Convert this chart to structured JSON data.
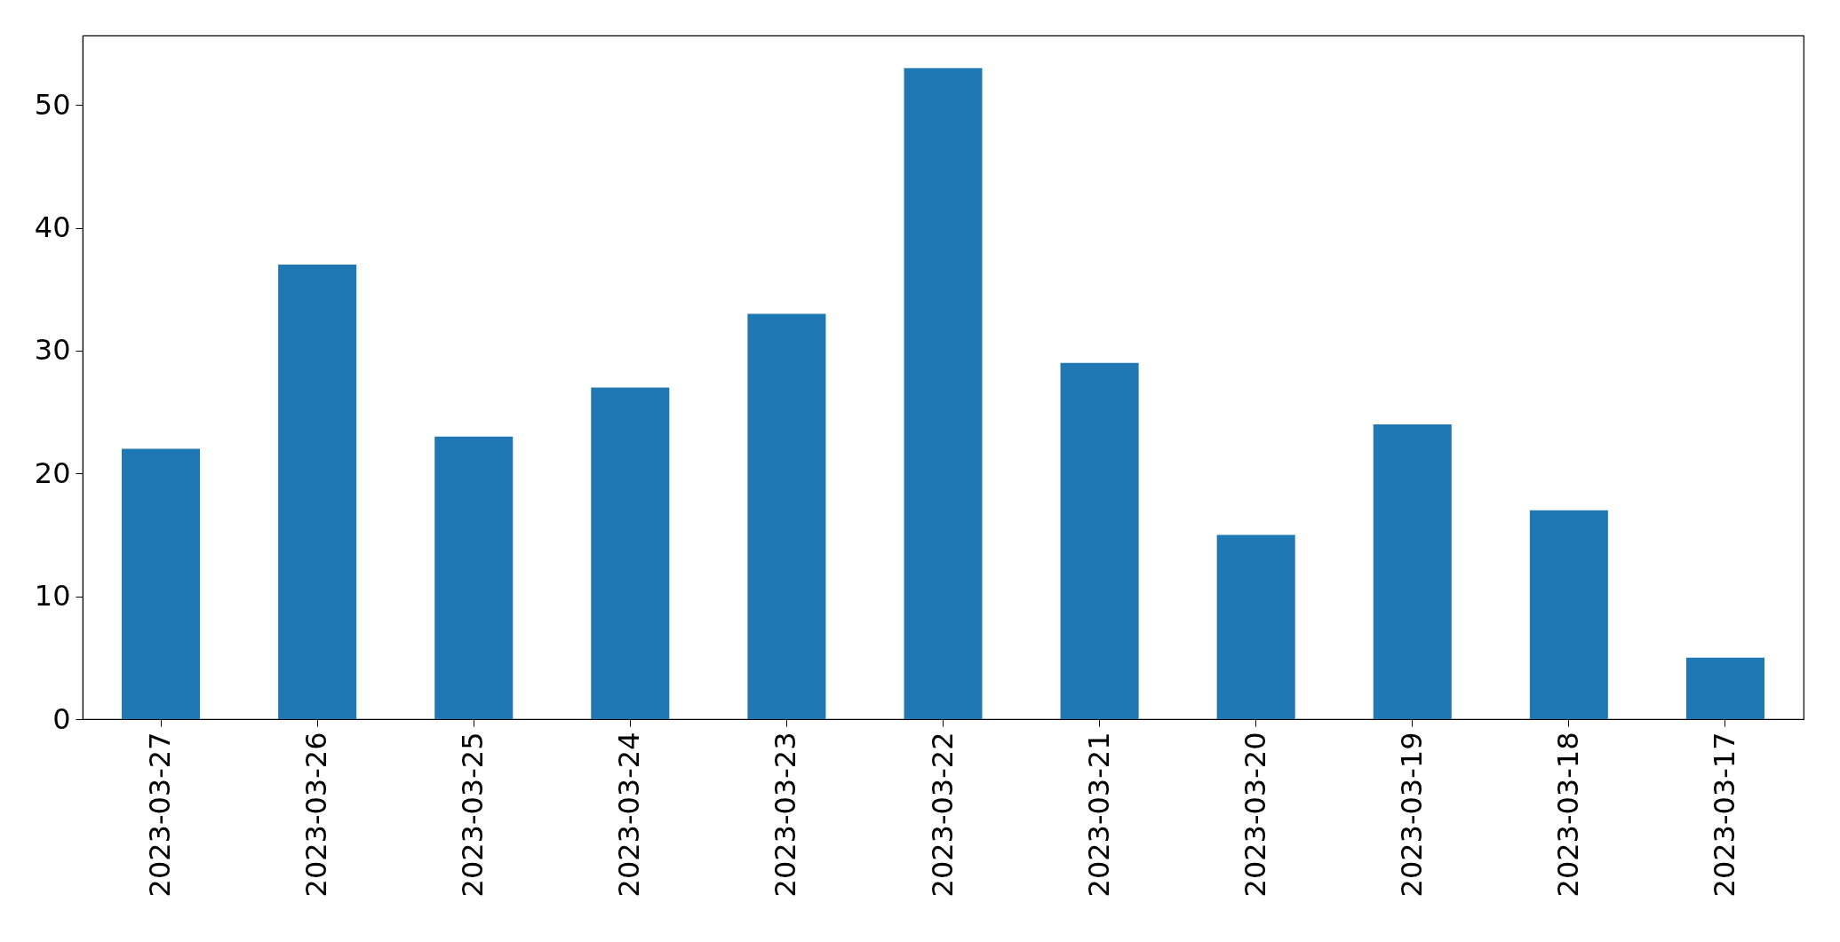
{
  "chart_data": {
    "type": "bar",
    "categories": [
      "2023-03-27",
      "2023-03-26",
      "2023-03-25",
      "2023-03-24",
      "2023-03-23",
      "2023-03-22",
      "2023-03-21",
      "2023-03-20",
      "2023-03-19",
      "2023-03-18",
      "2023-03-17"
    ],
    "values": [
      22,
      37,
      23,
      27,
      33,
      53,
      29,
      15,
      24,
      17,
      5
    ],
    "color": "#1f77b4",
    "ylim": [
      0,
      55.65
    ],
    "yticks": [
      0,
      10,
      20,
      30,
      40,
      50
    ]
  }
}
